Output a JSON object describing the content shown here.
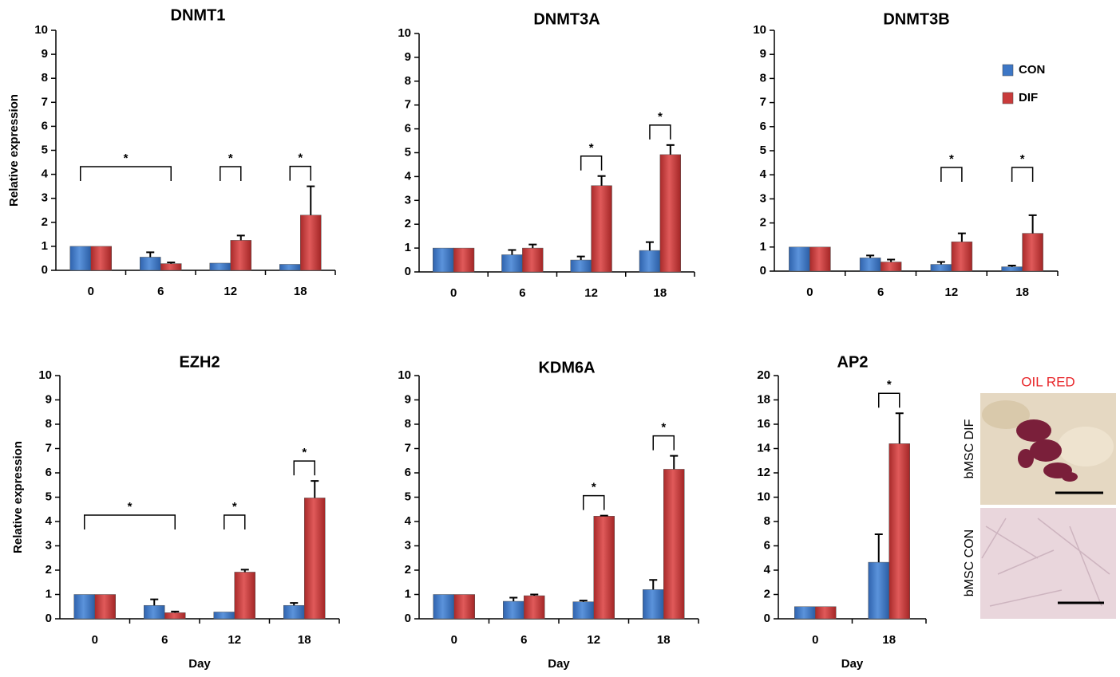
{
  "legend": {
    "series": [
      {
        "name": "CON",
        "color": "#3d77c6"
      },
      {
        "name": "DIF",
        "color": "#c93b3b"
      }
    ]
  },
  "chart_data": [
    {
      "type": "bar",
      "title": "DNMT1",
      "y_label": "Relative expression",
      "categories": [
        "0",
        "6",
        "12",
        "18"
      ],
      "series": [
        {
          "values": [
            1,
            0.55,
            0.3,
            0.25
          ],
          "errors": [
            0,
            0.2,
            0,
            0
          ]
        },
        {
          "values": [
            1,
            0.28,
            1.25,
            2.3
          ],
          "errors": [
            0,
            0.05,
            0.2,
            1.2
          ]
        }
      ],
      "ylim": [
        0,
        10
      ],
      "yticks": [
        0,
        1,
        2,
        3,
        4,
        5,
        6,
        7,
        8,
        9,
        10
      ],
      "annotations": [
        {
          "text": "*",
          "span": [
            "0",
            "6"
          ]
        },
        {
          "text": "*",
          "span": [
            "12",
            "12"
          ]
        },
        {
          "text": "*",
          "span": [
            "18",
            "18"
          ]
        }
      ]
    },
    {
      "type": "bar",
      "title": "DNMT3A",
      "categories": [
        "0",
        "6",
        "12",
        "18"
      ],
      "series": [
        {
          "values": [
            1,
            0.72,
            0.5,
            0.9
          ],
          "errors": [
            0,
            0.2,
            0.15,
            0.35
          ]
        },
        {
          "values": [
            1,
            1.0,
            3.62,
            4.92
          ],
          "errors": [
            0,
            0.15,
            0.4,
            0.4
          ]
        }
      ],
      "ylim": [
        0,
        10
      ],
      "yticks": [
        0,
        1,
        2,
        3,
        4,
        5,
        6,
        7,
        8,
        9,
        10
      ],
      "annotations": [
        {
          "text": "*",
          "span": [
            "12",
            "12"
          ]
        },
        {
          "text": "*",
          "span": [
            "18",
            "18"
          ]
        }
      ]
    },
    {
      "type": "bar",
      "title": "DNMT3B",
      "categories": [
        "0",
        "6",
        "12",
        "18"
      ],
      "legend": true,
      "series": [
        {
          "values": [
            1,
            0.55,
            0.28,
            0.18
          ],
          "errors": [
            0,
            0.1,
            0.1,
            0.05
          ]
        },
        {
          "values": [
            1,
            0.38,
            1.22,
            1.57
          ],
          "errors": [
            0,
            0.1,
            0.35,
            0.75
          ]
        }
      ],
      "ylim": [
        0,
        10
      ],
      "yticks": [
        0,
        1,
        2,
        3,
        4,
        5,
        6,
        7,
        8,
        9,
        10
      ],
      "annotations": [
        {
          "text": "*",
          "span": [
            "12",
            "12"
          ]
        },
        {
          "text": "*",
          "span": [
            "18",
            "18"
          ]
        }
      ]
    },
    {
      "type": "bar",
      "title": "EZH2",
      "y_label": "Relative expression",
      "x_label": "Day",
      "categories": [
        "0",
        "6",
        "12",
        "18"
      ],
      "series": [
        {
          "values": [
            1,
            0.55,
            0.28,
            0.55
          ],
          "errors": [
            0,
            0.25,
            0,
            0.1
          ]
        },
        {
          "values": [
            1,
            0.25,
            1.92,
            4.97
          ],
          "errors": [
            0,
            0.05,
            0.1,
            0.7
          ]
        }
      ],
      "ylim": [
        0,
        10
      ],
      "yticks": [
        0,
        1,
        2,
        3,
        4,
        5,
        6,
        7,
        8,
        9,
        10
      ],
      "annotations": [
        {
          "text": "*",
          "span": [
            "0",
            "6"
          ]
        },
        {
          "text": "*",
          "span": [
            "12",
            "12"
          ]
        },
        {
          "text": "*",
          "span": [
            "18",
            "18"
          ]
        }
      ]
    },
    {
      "type": "bar",
      "title": "KDM6A",
      "x_label": "Day",
      "categories": [
        "0",
        "6",
        "12",
        "18"
      ],
      "series": [
        {
          "values": [
            1,
            0.72,
            0.7,
            1.2
          ],
          "errors": [
            0,
            0.15,
            0.05,
            0.4
          ]
        },
        {
          "values": [
            1,
            0.95,
            4.22,
            6.15
          ],
          "errors": [
            0,
            0.05,
            0.02,
            0.55
          ]
        }
      ],
      "ylim": [
        0,
        10
      ],
      "yticks": [
        0,
        1,
        2,
        3,
        4,
        5,
        6,
        7,
        8,
        9,
        10
      ],
      "annotations": [
        {
          "text": "*",
          "span": [
            "12",
            "12"
          ]
        },
        {
          "text": "*",
          "span": [
            "18",
            "18"
          ]
        }
      ]
    },
    {
      "type": "bar",
      "title": "AP2",
      "x_label": "Day",
      "categories": [
        "0",
        "18"
      ],
      "series": [
        {
          "values": [
            1,
            4.65
          ],
          "errors": [
            0,
            2.3
          ]
        },
        {
          "values": [
            1,
            14.4
          ],
          "errors": [
            0,
            2.5
          ]
        }
      ],
      "ylim": [
        0,
        20
      ],
      "yticks": [
        0,
        2,
        4,
        6,
        8,
        10,
        12,
        14,
        16,
        18,
        20
      ],
      "annotations": [
        {
          "text": "*",
          "span": [
            "18",
            "18"
          ]
        }
      ]
    }
  ],
  "image_panel": {
    "title": "OIL RED",
    "labels": [
      "bMSC DIF",
      "bMSC CON"
    ]
  }
}
